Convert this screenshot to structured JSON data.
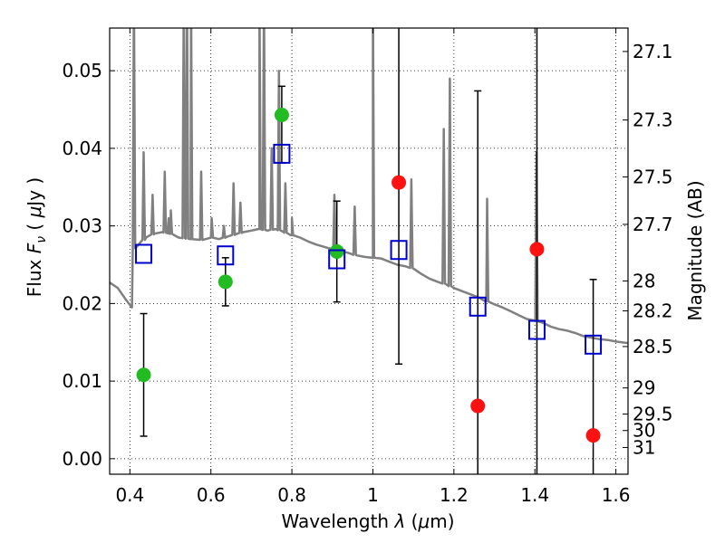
{
  "chart_data": {
    "type": "scatter",
    "xlabel": "Wavelength  λ (μm)",
    "ylabel": "Flux  F_ν  ( μJy )",
    "ylabel_parts": {
      "pre": "Flux  ",
      "italic": "F",
      "sub": "ν",
      "post": "  ( ",
      "mu": "μ",
      "unit": "Jy )"
    },
    "xlabel_parts": {
      "pre": "Wavelength  ",
      "lambda": "λ",
      "open": " (",
      "mu": "μ",
      "unit": "m)"
    },
    "y2label": "Magnitude (AB)",
    "xlim": [
      0.35,
      1.63
    ],
    "ylim": [
      -0.002,
      0.0555
    ],
    "grid": true,
    "x_ticks": [
      "0.4",
      "0.6",
      "0.8",
      "1",
      "1.2",
      "1.4",
      "1.6"
    ],
    "x_tick_values": [
      0.4,
      0.6,
      0.8,
      1.0,
      1.2,
      1.4,
      1.6
    ],
    "y_ticks": [
      "0.00",
      "0.01",
      "0.02",
      "0.03",
      "0.04",
      "0.05"
    ],
    "y_tick_values": [
      0.0,
      0.01,
      0.02,
      0.03,
      0.04,
      0.05
    ],
    "y2_ticks": [
      "27.1",
      "27.3",
      "27.5",
      "27.7",
      "28",
      "28.2",
      "28.5",
      "29",
      "29.5",
      "30",
      "31"
    ],
    "y2_tick_values": [
      27.1,
      27.3,
      27.5,
      27.7,
      28.0,
      28.2,
      28.5,
      29.0,
      29.5,
      30.0,
      31.0
    ],
    "sed_model": {
      "color": "#808080",
      "points": [
        [
          0.35,
          0.0227
        ],
        [
          0.37,
          0.022
        ],
        [
          0.39,
          0.0205
        ],
        [
          0.405,
          0.0195
        ],
        [
          0.407,
          0.027
        ],
        [
          0.42,
          0.0275
        ],
        [
          0.44,
          0.0285
        ],
        [
          0.46,
          0.029
        ],
        [
          0.48,
          0.0292
        ],
        [
          0.5,
          0.029
        ],
        [
          0.52,
          0.0285
        ],
        [
          0.55,
          0.0283
        ],
        [
          0.58,
          0.0282
        ],
        [
          0.6,
          0.0285
        ],
        [
          0.62,
          0.0283
        ],
        [
          0.64,
          0.0286
        ],
        [
          0.66,
          0.0289
        ],
        [
          0.68,
          0.0292
        ],
        [
          0.7,
          0.0294
        ],
        [
          0.72,
          0.0296
        ],
        [
          0.74,
          0.0294
        ],
        [
          0.76,
          0.0296
        ],
        [
          0.78,
          0.0292
        ],
        [
          0.8,
          0.0288
        ],
        [
          0.82,
          0.0285
        ],
        [
          0.84,
          0.028
        ],
        [
          0.86,
          0.0276
        ],
        [
          0.88,
          0.0273
        ],
        [
          0.9,
          0.027
        ],
        [
          0.92,
          0.0268
        ],
        [
          0.94,
          0.0265
        ],
        [
          0.96,
          0.0262
        ],
        [
          0.98,
          0.026
        ],
        [
          1.0,
          0.0259
        ],
        [
          1.02,
          0.0258
        ],
        [
          1.04,
          0.0254
        ],
        [
          1.06,
          0.025
        ],
        [
          1.08,
          0.0248
        ],
        [
          1.1,
          0.0245
        ],
        [
          1.12,
          0.0238
        ],
        [
          1.14,
          0.0232
        ],
        [
          1.16,
          0.0228
        ],
        [
          1.18,
          0.0225
        ],
        [
          1.2,
          0.022
        ],
        [
          1.22,
          0.0216
        ],
        [
          1.24,
          0.0212
        ],
        [
          1.26,
          0.0208
        ],
        [
          1.28,
          0.0203
        ],
        [
          1.3,
          0.0199
        ],
        [
          1.32,
          0.0195
        ],
        [
          1.34,
          0.019
        ],
        [
          1.36,
          0.0185
        ],
        [
          1.38,
          0.018
        ],
        [
          1.4,
          0.0178
        ],
        [
          1.42,
          0.0175
        ],
        [
          1.44,
          0.017
        ],
        [
          1.46,
          0.0167
        ],
        [
          1.48,
          0.0165
        ],
        [
          1.5,
          0.0162
        ],
        [
          1.52,
          0.0158
        ],
        [
          1.54,
          0.0156
        ],
        [
          1.56,
          0.0154
        ],
        [
          1.58,
          0.0153
        ],
        [
          1.6,
          0.0151
        ],
        [
          1.63,
          0.0149
        ]
      ],
      "emission_lines": [
        [
          0.41,
          0.06
        ],
        [
          0.434,
          0.0395
        ],
        [
          0.456,
          0.034
        ],
        [
          0.486,
          0.037
        ],
        [
          0.496,
          0.031
        ],
        [
          0.501,
          0.032
        ],
        [
          0.533,
          0.06
        ],
        [
          0.541,
          0.06
        ],
        [
          0.551,
          0.06
        ],
        [
          0.576,
          0.037
        ],
        [
          0.602,
          0.031
        ],
        [
          0.632,
          0.03
        ],
        [
          0.656,
          0.0355
        ],
        [
          0.673,
          0.033
        ],
        [
          0.72,
          0.06
        ],
        [
          0.731,
          0.06
        ],
        [
          0.75,
          0.04
        ],
        [
          0.768,
          0.05
        ],
        [
          0.784,
          0.0355
        ],
        [
          0.8,
          0.031
        ],
        [
          0.905,
          0.034
        ],
        [
          0.955,
          0.0325
        ],
        [
          1.0,
          0.06
        ],
        [
          1.095,
          0.036
        ],
        [
          1.175,
          0.0425
        ],
        [
          1.19,
          0.049
        ],
        [
          1.282,
          0.0335
        ],
        [
          1.404,
          0.0395
        ]
      ]
    },
    "series": [
      {
        "name": "",
        "marker": "circle",
        "color": "#22bb22",
        "x": [
          0.434,
          0.636,
          0.775,
          0.911
        ],
        "y": [
          0.0108,
          0.0228,
          0.0443,
          0.0267
        ],
        "yerr_low": [
          0.0029,
          0.0197,
          0.0381,
          0.0202
        ],
        "yerr_high": [
          0.0187,
          0.0259,
          0.048,
          0.0332
        ]
      },
      {
        "name": "",
        "marker": "circle",
        "color": "#ff1111",
        "x": [
          1.064,
          1.259,
          1.405,
          1.544
        ],
        "y": [
          0.0356,
          0.0068,
          0.027,
          0.003
        ],
        "yerr_low": [
          0.0122,
          -0.002,
          -0.002,
          -0.002
        ],
        "yerr_high": [
          0.06,
          0.0474,
          0.06,
          0.0231
        ]
      },
      {
        "name": "",
        "marker": "square",
        "color": "#0000cc",
        "x": [
          0.434,
          0.636,
          0.775,
          0.911,
          1.064,
          1.259,
          1.405,
          1.544
        ],
        "y": [
          0.0264,
          0.0262,
          0.0393,
          0.0257,
          0.0269,
          0.0196,
          0.0166,
          0.0147
        ]
      }
    ]
  }
}
